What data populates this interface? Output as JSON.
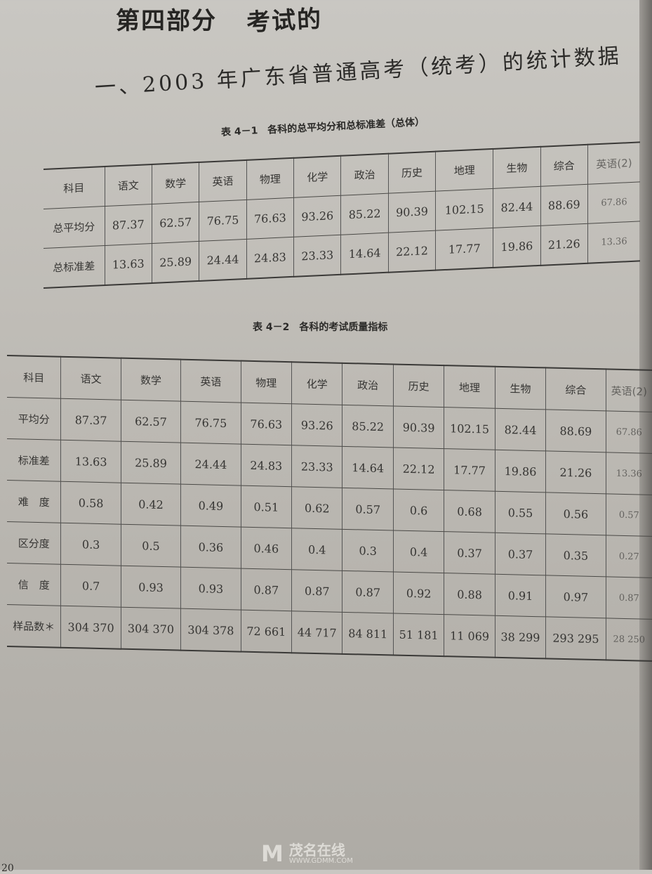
{
  "part_title": "第四部分",
  "part_title_cont": "考试的",
  "section_title": "一、2003 年广东省普通高考（统考）的统计数据",
  "table1": {
    "caption": "表 4－1　各科的总平均分和总标准差（总体）",
    "header": [
      "科目",
      "语文",
      "数学",
      "英语",
      "物理",
      "化学",
      "政治",
      "历史",
      "地理",
      "生物",
      "综合",
      "英语(2)"
    ],
    "rows": [
      [
        "总平均分",
        "87.37",
        "62.57",
        "76.75",
        "76.63",
        "93.26",
        "85.22",
        "90.39",
        "102.15",
        "82.44",
        "88.69",
        "67.86"
      ],
      [
        "总标准差",
        "13.63",
        "25.89",
        "24.44",
        "24.83",
        "23.33",
        "14.64",
        "22.12",
        "17.77",
        "19.86",
        "21.26",
        "13.36"
      ]
    ]
  },
  "table2": {
    "caption": "表 4－2　各科的考试质量指标",
    "header": [
      "科目",
      "语文",
      "数学",
      "英语",
      "物理",
      "化学",
      "政治",
      "历史",
      "地理",
      "生物",
      "综合",
      "英语(2)"
    ],
    "rows": [
      [
        "平均分",
        "87.37",
        "62.57",
        "76.75",
        "76.63",
        "93.26",
        "85.22",
        "90.39",
        "102.15",
        "82.44",
        "88.69",
        "67.86"
      ],
      [
        "标准差",
        "13.63",
        "25.89",
        "24.44",
        "24.83",
        "23.33",
        "14.64",
        "22.12",
        "17.77",
        "19.86",
        "21.26",
        "13.36"
      ],
      [
        "难　度",
        "0.58",
        "0.42",
        "0.49",
        "0.51",
        "0.62",
        "0.57",
        "0.6",
        "0.68",
        "0.55",
        "0.56",
        "0.57"
      ],
      [
        "区分度",
        "0.3",
        "0.5",
        "0.36",
        "0.46",
        "0.4",
        "0.3",
        "0.4",
        "0.37",
        "0.37",
        "0.35",
        "0.27"
      ],
      [
        "信　度",
        "0.7",
        "0.93",
        "0.93",
        "0.87",
        "0.87",
        "0.87",
        "0.92",
        "0.88",
        "0.91",
        "0.97",
        "0.87"
      ],
      [
        "样品数＊",
        "304 370",
        "304 370",
        "304 378",
        "72 661",
        "44 717",
        "84 811",
        "51 181",
        "11 069",
        "38 299",
        "293 295",
        "28 250"
      ]
    ]
  },
  "watermark": {
    "name": "茂名在线",
    "url": "WWW.GDMM.COM"
  },
  "page_number": "20"
}
